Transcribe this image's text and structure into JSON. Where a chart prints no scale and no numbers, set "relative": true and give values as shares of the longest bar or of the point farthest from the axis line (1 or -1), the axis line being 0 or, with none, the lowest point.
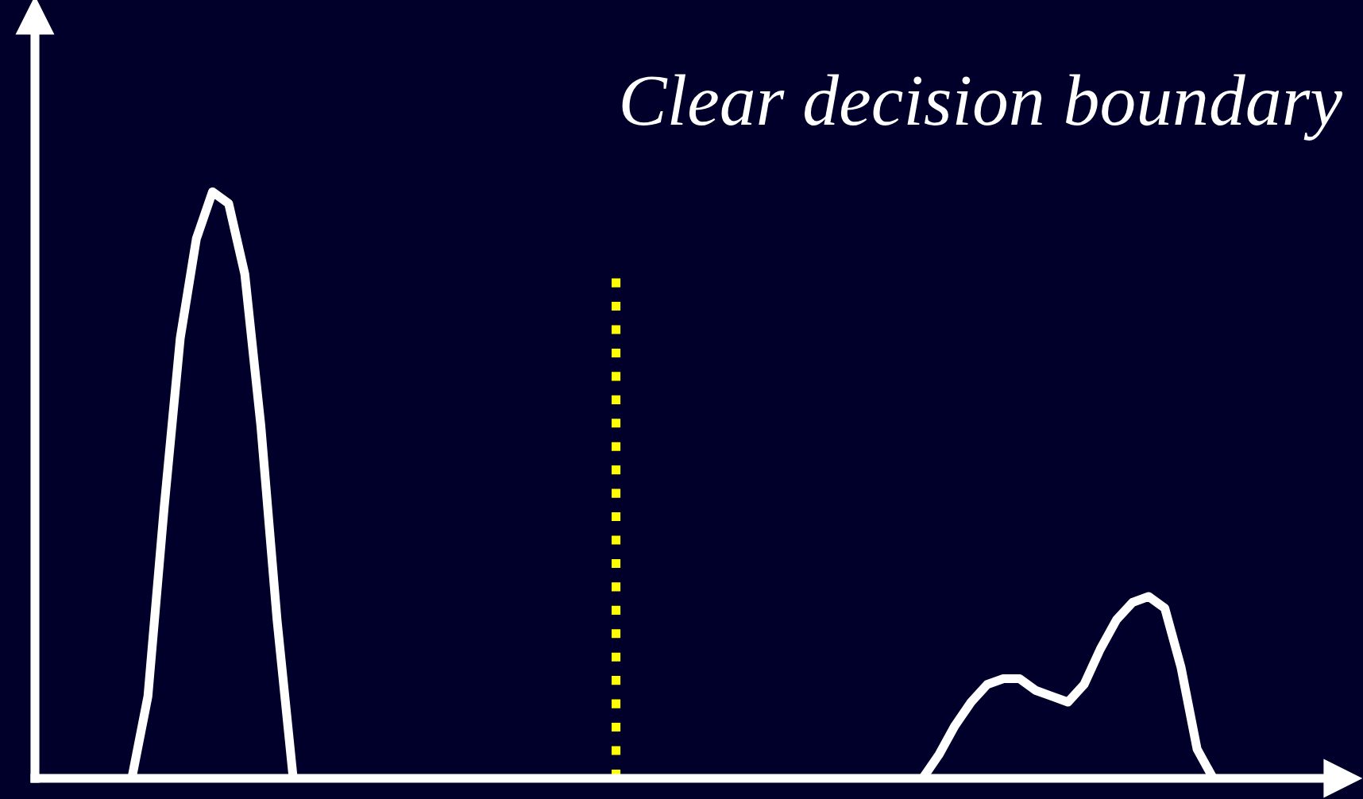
{
  "chart_data": {
    "type": "line",
    "title": "Clear decision boundary",
    "relative": true,
    "categories": [
      null,
      null,
      null,
      null,
      null,
      null,
      null,
      null,
      null,
      null,
      null,
      null,
      null,
      null,
      null,
      null,
      null,
      null,
      null,
      null,
      null,
      null,
      null,
      null,
      null,
      null,
      null,
      null,
      null,
      null,
      null,
      null,
      null,
      null,
      null,
      null,
      null,
      null,
      null,
      null,
      null,
      null,
      null,
      null,
      null,
      null,
      null,
      null,
      null,
      null,
      null,
      null,
      null,
      null,
      null,
      null,
      null,
      null,
      null,
      null,
      null,
      null,
      null,
      null,
      null,
      null,
      null,
      null,
      null,
      null,
      null,
      null,
      null,
      null,
      null,
      null,
      null,
      null,
      null,
      null,
      null
    ],
    "series": [
      {
        "color": "#ffffff",
        "values": [
          null,
          null,
          null,
          null,
          null,
          null,
          0,
          0.14,
          0.46,
          0.75,
          0.92,
          1.0,
          0.98,
          0.86,
          0.6,
          0.27,
          0,
          null,
          null,
          null,
          null,
          null,
          null,
          null,
          null,
          null,
          null,
          null,
          null,
          null,
          null,
          null,
          null,
          null,
          null,
          null,
          null,
          null,
          null,
          null,
          null,
          null,
          null,
          null,
          null,
          null,
          null,
          null,
          null,
          null,
          null,
          null,
          null,
          null,
          null,
          null,
          null,
          null,
          null,
          null,
          null,
          null,
          null,
          null,
          null,
          null,
          null,
          null,
          null,
          null,
          null,
          null,
          null,
          null,
          null,
          null,
          null,
          null,
          null,
          null,
          null
        ]
      },
      {
        "color": "#ffffff",
        "values": [
          null,
          null,
          null,
          null,
          null,
          null,
          null,
          null,
          null,
          null,
          null,
          null,
          null,
          null,
          null,
          null,
          null,
          null,
          null,
          null,
          null,
          null,
          null,
          null,
          null,
          null,
          null,
          null,
          null,
          null,
          null,
          null,
          null,
          null,
          null,
          null,
          null,
          null,
          null,
          null,
          null,
          null,
          null,
          null,
          null,
          null,
          null,
          null,
          null,
          null,
          null,
          null,
          null,
          null,
          null,
          0,
          0.04,
          0.09,
          0.13,
          0.16,
          0.17,
          0.17,
          0.15,
          0.14,
          0.13,
          0.16,
          0.22,
          0.27,
          0.3,
          0.31,
          0.29,
          0.19,
          0.05,
          0,
          null,
          null,
          null,
          null,
          null,
          null,
          null
        ]
      }
    ],
    "tick_labels": false,
    "marker": "none",
    "line_style": "solid"
  }
}
